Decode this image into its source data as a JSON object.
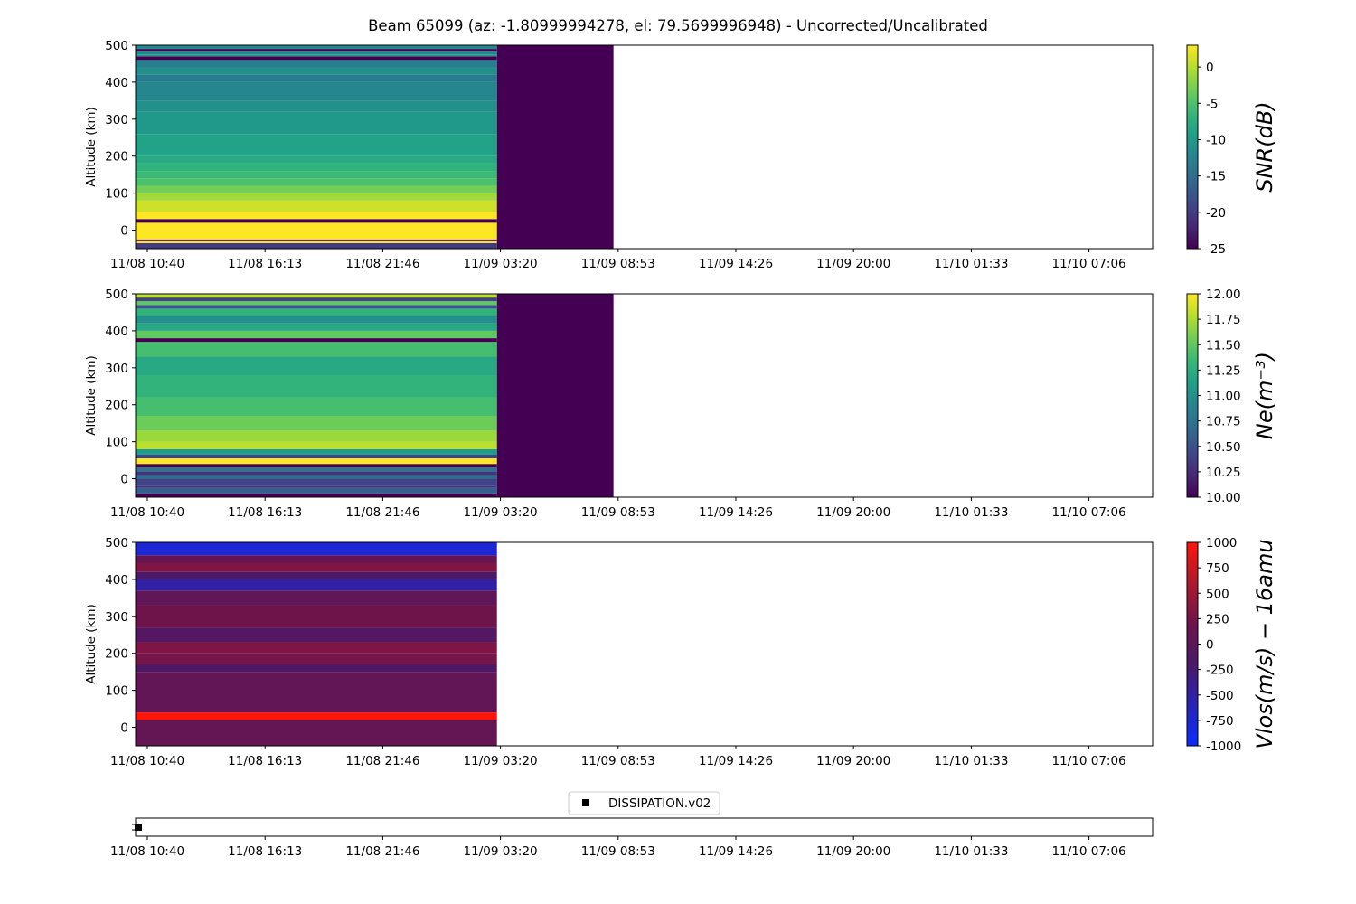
{
  "title": "Beam 65099 (az: -1.80999994278, el: 79.5699996948) - Uncorrected/Uncalibrated",
  "chart_data": [
    {
      "type": "heatmap",
      "name": "snr",
      "ylabel": "Altitude (km)",
      "ylim": [
        -50,
        500
      ],
      "yticks": [
        0,
        100,
        200,
        300,
        400,
        500
      ],
      "x_tick_labels": [
        "11/08 10:40",
        "11/08 16:13",
        "11/08 21:46",
        "11/09 03:20",
        "11/09 08:53",
        "11/09 14:26",
        "11/09 20:00",
        "11/10 01:33",
        "11/10 07:06"
      ],
      "x_data_range_hours": [
        0.0,
        16.5
      ],
      "x_data_split_hours": 16.5,
      "colorbar_label": "SNR(dB)",
      "colormap": "viridis",
      "clim": [
        -25,
        3
      ],
      "colorbar_ticks": [
        0,
        -5,
        -10,
        -15,
        -20,
        -25
      ],
      "profile": [
        [
          -50,
          -35,
          -20
        ],
        [
          -35,
          -30,
          3
        ],
        [
          -30,
          -25,
          -25
        ],
        [
          -25,
          20,
          3
        ],
        [
          20,
          30,
          -25
        ],
        [
          30,
          50,
          3
        ],
        [
          50,
          80,
          1
        ],
        [
          80,
          100,
          -1
        ],
        [
          100,
          120,
          -3
        ],
        [
          120,
          140,
          -5
        ],
        [
          140,
          160,
          -6
        ],
        [
          160,
          180,
          -7
        ],
        [
          180,
          200,
          -8
        ],
        [
          200,
          260,
          -9
        ],
        [
          260,
          320,
          -10
        ],
        [
          320,
          350,
          -11
        ],
        [
          350,
          400,
          -12
        ],
        [
          400,
          420,
          -13
        ],
        [
          420,
          440,
          -11
        ],
        [
          440,
          460,
          -13
        ],
        [
          460,
          470,
          -25
        ],
        [
          470,
          475,
          -10
        ],
        [
          475,
          485,
          -12
        ],
        [
          485,
          490,
          -25
        ],
        [
          490,
          500,
          -12
        ]
      ],
      "right_block_value": -25
    },
    {
      "type": "heatmap",
      "name": "ne",
      "ylabel": "Altitude (km)",
      "ylim": [
        -50,
        500
      ],
      "yticks": [
        0,
        100,
        200,
        300,
        400,
        500
      ],
      "x_tick_labels": [
        "11/08 10:40",
        "11/08 16:13",
        "11/08 21:46",
        "11/09 03:20",
        "11/09 08:53",
        "11/09 14:26",
        "11/09 20:00",
        "11/10 01:33",
        "11/10 07:06"
      ],
      "x_data_range_hours": [
        0.0,
        16.5
      ],
      "x_data_split_hours": 16.5,
      "colorbar_label": "Ne(m⁻³)",
      "colormap": "viridis",
      "clim": [
        10.0,
        12.0
      ],
      "colorbar_ticks": [
        12.0,
        11.75,
        11.5,
        11.25,
        11.0,
        10.75,
        10.5,
        10.25,
        10.0
      ],
      "profile": [
        [
          -50,
          -40,
          10.0
        ],
        [
          -40,
          -25,
          10.6
        ],
        [
          -25,
          -20,
          10.3
        ],
        [
          -20,
          0,
          10.4
        ],
        [
          0,
          10,
          10.7
        ],
        [
          10,
          20,
          10.3
        ],
        [
          20,
          30,
          10.8
        ],
        [
          30,
          40,
          10.0
        ],
        [
          40,
          55,
          12.0
        ],
        [
          55,
          65,
          10.4
        ],
        [
          65,
          80,
          11.1
        ],
        [
          80,
          100,
          11.8
        ],
        [
          100,
          130,
          11.7
        ],
        [
          130,
          170,
          11.55
        ],
        [
          170,
          220,
          11.4
        ],
        [
          220,
          280,
          11.3
        ],
        [
          280,
          330,
          11.2
        ],
        [
          330,
          370,
          11.4
        ],
        [
          370,
          380,
          10.0
        ],
        [
          380,
          400,
          11.5
        ],
        [
          400,
          420,
          11.2
        ],
        [
          420,
          440,
          11.0
        ],
        [
          440,
          460,
          11.3
        ],
        [
          460,
          470,
          10.5
        ],
        [
          470,
          480,
          11.5
        ],
        [
          480,
          490,
          10.4
        ],
        [
          490,
          500,
          11.8
        ]
      ],
      "right_block_value": 10.0
    },
    {
      "type": "heatmap",
      "name": "vlos",
      "ylabel": "Altitude (km)",
      "ylim": [
        -50,
        500
      ],
      "yticks": [
        0,
        100,
        200,
        300,
        400,
        500
      ],
      "x_tick_labels": [
        "11/08 10:40",
        "11/08 16:13",
        "11/08 21:46",
        "11/09 03:20",
        "11/09 08:53",
        "11/09 14:26",
        "11/09 20:00",
        "11/10 01:33",
        "11/10 07:06"
      ],
      "x_data_range_hours": [
        0.0,
        16.5
      ],
      "colorbar_label": "Vlos(m/s) − 16amu",
      "colormap": "blue-red",
      "clim": [
        -1000,
        1000
      ],
      "colorbar_ticks": [
        1000,
        750,
        500,
        250,
        0,
        -250,
        -500,
        -750,
        -1000
      ],
      "profile": [
        [
          -50,
          20,
          80
        ],
        [
          20,
          40,
          1000
        ],
        [
          40,
          150,
          60
        ],
        [
          150,
          170,
          -150
        ],
        [
          170,
          200,
          250
        ],
        [
          200,
          230,
          300
        ],
        [
          230,
          270,
          -100
        ],
        [
          270,
          330,
          200
        ],
        [
          330,
          370,
          40
        ],
        [
          370,
          400,
          -500
        ],
        [
          400,
          420,
          -200
        ],
        [
          420,
          445,
          300
        ],
        [
          445,
          465,
          100
        ],
        [
          465,
          500,
          -750
        ]
      ]
    },
    {
      "type": "scatter",
      "name": "dissipation",
      "legend": [
        "DISSIPATION.v02"
      ],
      "legend_placement": "top-center",
      "marker": "square",
      "marker_color": "#000000",
      "x_tick_labels": [
        "11/08 10:40",
        "11/08 16:13",
        "11/08 21:46",
        "11/09 03:20",
        "11/09 08:53",
        "11/09 14:26",
        "11/09 20:00",
        "11/10 01:33",
        "11/10 07:06"
      ],
      "points_hours": [
        0.1
      ]
    }
  ]
}
